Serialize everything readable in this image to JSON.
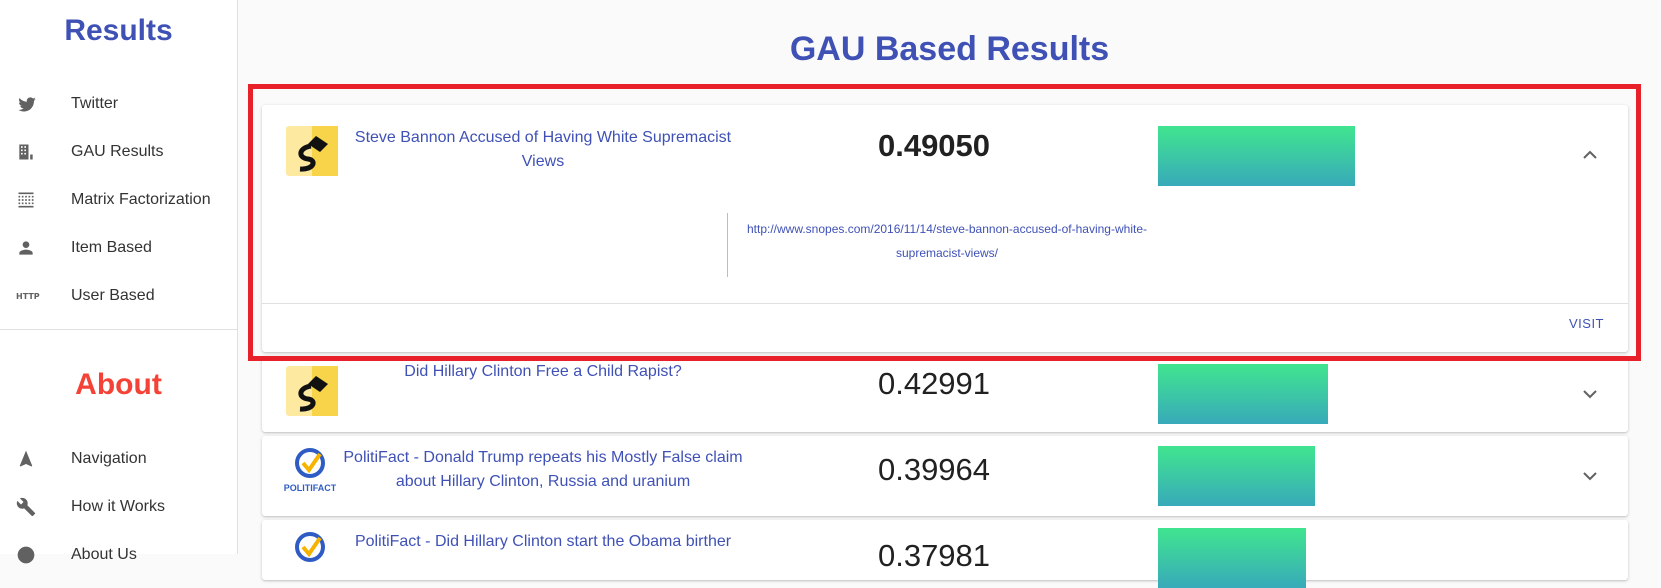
{
  "sidebar": {
    "results_title": "Results",
    "about_title": "About",
    "results_items": [
      {
        "label": "Twitter",
        "icon": "twitter-icon"
      },
      {
        "label": "GAU Results",
        "icon": "building-icon"
      },
      {
        "label": "Matrix Factorization",
        "icon": "grid-icon"
      },
      {
        "label": "Item Based",
        "icon": "person-icon"
      },
      {
        "label": "User Based",
        "icon": "http-icon"
      }
    ],
    "about_items": [
      {
        "label": "Navigation",
        "icon": "navigation-icon"
      },
      {
        "label": "How it Works",
        "icon": "wrench-icon"
      },
      {
        "label": "About Us",
        "icon": "info-icon"
      }
    ]
  },
  "main": {
    "title": "GAU Based Results",
    "results": [
      {
        "title": "Steve Bannon Accused of Having White Supremacist Views",
        "score": "0.49050",
        "score_value": 0.4905,
        "expanded": true,
        "url": "http://www.snopes.com/2016/11/14/steve-bannon-accused-of-having-white-supremacist-views/",
        "visit_label": "VISIT",
        "source": "snopes"
      },
      {
        "title": "Did Hillary Clinton Free a Child Rapist?",
        "score": "0.42991",
        "score_value": 0.42991,
        "expanded": false,
        "source": "snopes"
      },
      {
        "title": "PolitiFact - Donald Trump repeats his Mostly False claim about Hillary Clinton, Russia and uranium",
        "score": "0.39964",
        "score_value": 0.39964,
        "expanded": false,
        "source": "politifact"
      },
      {
        "title": "PolitiFact - Did Hillary Clinton start the Obama birther",
        "score": "0.37981",
        "score_value": 0.37981,
        "expanded": false,
        "source": "politifact"
      }
    ],
    "politifact_logo_text": "POLITIFACT"
  },
  "colors": {
    "accent": "#3f51b5",
    "about": "#f44336",
    "highlight": "#e8202a",
    "bar_top": "#40e58f",
    "bar_bottom": "#38aab9"
  }
}
